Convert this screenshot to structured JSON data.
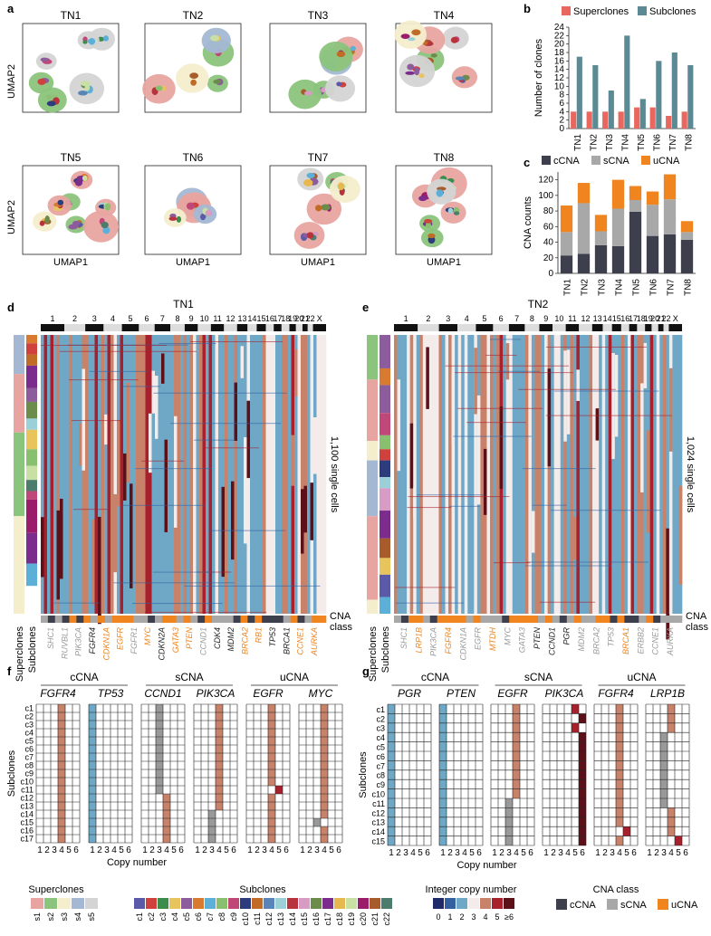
{
  "panels": {
    "a": "a",
    "b": "b",
    "c": "c",
    "d": "d",
    "e": "e",
    "f": "f",
    "g": "g"
  },
  "panel_a": {
    "titles": [
      "TN1",
      "TN2",
      "TN3",
      "TN4",
      "TN5",
      "TN6",
      "TN7",
      "TN8"
    ],
    "ylabel": "UMAP2",
    "xlabel": "UMAP1"
  },
  "colors": {
    "superclone": "#e8675f",
    "subclone": "#5b8a94",
    "ccna": "#3d3f4c",
    "scna": "#a8a8a8",
    "ucna": "#f0841e",
    "gain": "#c8826a",
    "loss": "#6ea8c6",
    "neutral": "#f4ecea"
  },
  "chart_data": [
    {
      "type": "bar",
      "title": "",
      "categories": [
        "TN1",
        "TN2",
        "TN3",
        "TN4",
        "TN5",
        "TN6",
        "TN7",
        "TN8"
      ],
      "series": [
        {
          "name": "Superclones",
          "values": [
            4,
            4,
            4,
            4,
            5,
            5,
            3,
            4
          ]
        },
        {
          "name": "Subclones",
          "values": [
            17,
            15,
            9,
            22,
            7,
            16,
            18,
            15
          ]
        }
      ],
      "ylabel": "Number of clones",
      "ylim": [
        0,
        24
      ],
      "yticks": [
        0,
        2,
        4,
        6,
        8,
        10,
        12,
        14,
        16,
        18,
        20,
        22,
        24
      ]
    },
    {
      "type": "bar",
      "stacked": true,
      "title": "",
      "categories": [
        "TN1",
        "TN2",
        "TN3",
        "TN4",
        "TN5",
        "TN6",
        "TN7",
        "TN8"
      ],
      "series": [
        {
          "name": "cCNA",
          "values": [
            23,
            25,
            36,
            35,
            79,
            48,
            50,
            43
          ]
        },
        {
          "name": "sCNA",
          "values": [
            30,
            65,
            18,
            48,
            15,
            40,
            45,
            10
          ]
        },
        {
          "name": "uCNA",
          "values": [
            34,
            26,
            21,
            37,
            18,
            17,
            32,
            14
          ]
        }
      ],
      "ylabel": "CNA counts",
      "ylim": [
        0,
        130
      ],
      "yticks": [
        0,
        20,
        40,
        60,
        80,
        100,
        120
      ]
    }
  ],
  "panel_d": {
    "title": "TN1",
    "chromosomes": [
      "1",
      "2",
      "3",
      "4",
      "5",
      "6",
      "7",
      "8",
      "9",
      "10",
      "11",
      "12",
      "13",
      "14",
      "15",
      "16",
      "17",
      "18",
      "19",
      "20",
      "21",
      "22",
      "X"
    ],
    "cells_label": "1,100 single cells",
    "row_labels": [
      "Superclones",
      "Subclones"
    ],
    "cna_class_label": [
      "CNA",
      "class"
    ],
    "genes": [
      {
        "name": "SHC1",
        "cls": "s"
      },
      {
        "name": "RUVBL1",
        "cls": "s"
      },
      {
        "name": "PIK3CA",
        "cls": "s"
      },
      {
        "name": "FGFR4",
        "cls": "c"
      },
      {
        "name": "CDKN1A",
        "cls": "u"
      },
      {
        "name": "EGFR",
        "cls": "u"
      },
      {
        "name": "FGFR1",
        "cls": "s"
      },
      {
        "name": "MYC",
        "cls": "u"
      },
      {
        "name": "CDKN2A",
        "cls": "c"
      },
      {
        "name": "GATA3",
        "cls": "u"
      },
      {
        "name": "PTEN",
        "cls": "u"
      },
      {
        "name": "CCND1",
        "cls": "s"
      },
      {
        "name": "CDK4",
        "cls": "c"
      },
      {
        "name": "MDM2",
        "cls": "c"
      },
      {
        "name": "BRCA2",
        "cls": "u"
      },
      {
        "name": "RB1",
        "cls": "u"
      },
      {
        "name": "TP53",
        "cls": "c"
      },
      {
        "name": "BRCA1",
        "cls": "c"
      },
      {
        "name": "CCNE1",
        "cls": "u"
      },
      {
        "name": "AURKA",
        "cls": "u"
      }
    ]
  },
  "panel_e": {
    "title": "TN2",
    "chromosomes": [
      "1",
      "2",
      "3",
      "4",
      "5",
      "6",
      "7",
      "8",
      "9",
      "10",
      "11",
      "12",
      "13",
      "14",
      "15",
      "16",
      "17",
      "18",
      "19",
      "20",
      "21",
      "22",
      "X"
    ],
    "cells_label": "1,024 single cells",
    "row_labels": [
      "Superclones",
      "Subclones"
    ],
    "cna_class_label": [
      "CNA",
      "class"
    ],
    "genes": [
      {
        "name": "SHC1",
        "cls": "s"
      },
      {
        "name": "LRP1B",
        "cls": "u"
      },
      {
        "name": "PIK3CA",
        "cls": "s"
      },
      {
        "name": "FGFR4",
        "cls": "u"
      },
      {
        "name": "CDKN1A",
        "cls": "s"
      },
      {
        "name": "EGFR",
        "cls": "s"
      },
      {
        "name": "MTDH",
        "cls": "u"
      },
      {
        "name": "MYC",
        "cls": "s"
      },
      {
        "name": "GATA3",
        "cls": "s"
      },
      {
        "name": "PTEN",
        "cls": "c"
      },
      {
        "name": "CCND1",
        "cls": "c"
      },
      {
        "name": "PGR",
        "cls": "c"
      },
      {
        "name": "MDM2",
        "cls": "s"
      },
      {
        "name": "BRCA2",
        "cls": "s"
      },
      {
        "name": "TP53",
        "cls": "s"
      },
      {
        "name": "BRCA1",
        "cls": "u"
      },
      {
        "name": "ERBB2",
        "cls": "s"
      },
      {
        "name": "CCNE1",
        "cls": "s"
      },
      {
        "name": "AURKA",
        "cls": "s"
      }
    ]
  },
  "panel_f": {
    "classes": [
      "cCNA",
      "sCNA",
      "uCNA"
    ],
    "genes": [
      {
        "name": "FGFR4",
        "cn": [
          4,
          4,
          4,
          4,
          4,
          4,
          4,
          4,
          4,
          4,
          4,
          4,
          4,
          4,
          4,
          4,
          4
        ],
        "col": "gain"
      },
      {
        "name": "TP53",
        "cn": [
          1,
          1,
          1,
          1,
          1,
          1,
          1,
          1,
          1,
          1,
          1,
          1,
          1,
          1,
          1,
          1,
          1
        ],
        "col": "loss"
      },
      {
        "name": "CCND1",
        "cn": [
          3,
          3,
          3,
          3,
          3,
          3,
          3,
          3,
          3,
          3,
          3,
          4,
          4,
          4,
          4,
          4,
          4
        ],
        "col": "mix3"
      },
      {
        "name": "PIK3CA",
        "cn": [
          4,
          4,
          4,
          4,
          4,
          4,
          4,
          4,
          4,
          4,
          4,
          4,
          4,
          3,
          3,
          3,
          3
        ],
        "col": "mix4"
      },
      {
        "name": "EGFR",
        "cn": [
          4,
          4,
          4,
          4,
          4,
          4,
          4,
          4,
          4,
          4,
          5,
          4,
          4,
          4,
          4,
          4,
          4
        ],
        "col": "u"
      },
      {
        "name": "MYC",
        "cn": [
          4,
          4,
          4,
          4,
          4,
          4,
          4,
          4,
          4,
          4,
          4,
          4,
          4,
          4,
          3,
          4,
          4
        ],
        "col": "u"
      }
    ],
    "subclones": [
      "c1",
      "c2",
      "c3",
      "c4",
      "c5",
      "c6",
      "c7",
      "c8",
      "c9",
      "c10",
      "c11",
      "c12",
      "c13",
      "c14",
      "c15",
      "c16",
      "c17"
    ],
    "ylabel": "Subclones",
    "xlabel": "Copy number",
    "xticks": [
      "1",
      "2",
      "3",
      "4",
      "5",
      "6"
    ]
  },
  "panel_g": {
    "classes": [
      "cCNA",
      "sCNA",
      "uCNA"
    ],
    "genes": [
      {
        "name": "PGR",
        "cn": [
          1,
          1,
          1,
          1,
          1,
          1,
          1,
          1,
          1,
          1,
          1,
          1,
          1,
          1,
          1
        ]
      },
      {
        "name": "PTEN",
        "cn": [
          1,
          1,
          1,
          1,
          1,
          1,
          1,
          1,
          1,
          1,
          1,
          1,
          1,
          1,
          1
        ]
      },
      {
        "name": "EGFR",
        "cn": [
          4,
          4,
          4,
          4,
          4,
          4,
          4,
          4,
          4,
          4,
          3,
          3,
          3,
          3,
          3
        ]
      },
      {
        "name": "PIK3CA",
        "cn": [
          5,
          6,
          5,
          6,
          6,
          6,
          6,
          6,
          6,
          6,
          6,
          6,
          6,
          6,
          6
        ]
      },
      {
        "name": "FGFR4",
        "cn": [
          4,
          4,
          4,
          4,
          4,
          4,
          4,
          4,
          4,
          4,
          4,
          4,
          4,
          5,
          4
        ]
      },
      {
        "name": "LRP1B",
        "cn": [
          4,
          4,
          4,
          3,
          3,
          3,
          3,
          3,
          3,
          3,
          3,
          4,
          4,
          4,
          5
        ]
      }
    ],
    "subclones": [
      "c1",
      "c2",
      "c3",
      "c4",
      "c5",
      "c6",
      "c7",
      "c8",
      "c9",
      "c10",
      "c11",
      "c12",
      "c13",
      "c14",
      "c15"
    ],
    "ylabel": "Subclones",
    "xlabel": "Copy number",
    "xticks": [
      "1",
      "2",
      "3",
      "4",
      "5",
      "6"
    ]
  },
  "legend": {
    "superclones_title": "Superclones",
    "superclones": [
      {
        "label": "s1",
        "color": "#e8a4a0"
      },
      {
        "label": "s2",
        "color": "#8bc47c"
      },
      {
        "label": "s3",
        "color": "#f4eecd"
      },
      {
        "label": "s4",
        "color": "#a4b8d4"
      },
      {
        "label": "s5",
        "color": "#d4d4d4"
      }
    ],
    "subclones_title": "Subclones",
    "subclones": [
      {
        "label": "c1",
        "color": "#5a5aa8"
      },
      {
        "label": "c2",
        "color": "#d0403c"
      },
      {
        "label": "c3",
        "color": "#3c8c4c"
      },
      {
        "label": "c4",
        "color": "#e8c45c"
      },
      {
        "label": "c5",
        "color": "#8c5c9c"
      },
      {
        "label": "c6",
        "color": "#d87a30"
      },
      {
        "label": "c7",
        "color": "#5cb0d8"
      },
      {
        "label": "c8",
        "color": "#88c070"
      },
      {
        "label": "c9",
        "color": "#c04878"
      },
      {
        "label": "c10",
        "color": "#2c3c7c"
      },
      {
        "label": "c11",
        "color": "#c06c28"
      },
      {
        "label": "c12",
        "color": "#5884b8"
      },
      {
        "label": "c13",
        "color": "#9cd0d8"
      },
      {
        "label": "c14",
        "color": "#b8343c"
      },
      {
        "label": "c15",
        "color": "#d89cc4"
      },
      {
        "label": "c16",
        "color": "#6c8c4c"
      },
      {
        "label": "c17",
        "color": "#7c2c8c"
      },
      {
        "label": "c18",
        "color": "#e8b850"
      },
      {
        "label": "c19",
        "color": "#c8e0a4"
      },
      {
        "label": "c20",
        "color": "#9c1c6c"
      },
      {
        "label": "c21",
        "color": "#a85c2c"
      },
      {
        "label": "c22",
        "color": "#4c7c6c"
      }
    ],
    "integer_cn_title": "Integer copy number",
    "integer_cn": [
      {
        "label": "0",
        "color": "#1f2a6a"
      },
      {
        "label": "1",
        "color": "#3460a0"
      },
      {
        "label": "2",
        "color": "#6ea8c6"
      },
      {
        "label": "3",
        "color": "#f4ecea"
      },
      {
        "label": "4",
        "color": "#c8826a"
      },
      {
        "label": "5",
        "color": "#a8202c"
      },
      {
        "label": "≥6",
        "color": "#5c1018"
      }
    ],
    "cna_class_title": "CNA class",
    "cna_class": [
      {
        "label": "cCNA",
        "color": "#3d3f4c"
      },
      {
        "label": "sCNA",
        "color": "#a8a8a8"
      },
      {
        "label": "uCNA",
        "color": "#f0841e"
      }
    ]
  }
}
